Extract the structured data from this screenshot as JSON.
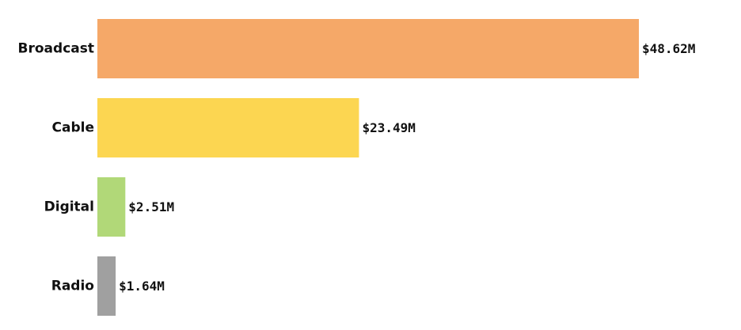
{
  "chart_data": {
    "type": "bar",
    "orientation": "horizontal",
    "categories": [
      "Broadcast",
      "Cable",
      "Digital",
      "Radio"
    ],
    "values": [
      48.62,
      23.49,
      2.51,
      1.64
    ],
    "value_labels": [
      "$48.62M",
      "$23.49M",
      "$2.51M",
      "$1.64M"
    ],
    "colors": [
      "#f5a868",
      "#fcd651",
      "#b1d878",
      "#a0a0a0"
    ],
    "xlim": [
      0,
      48.62
    ],
    "grid": false,
    "legend": "none"
  }
}
